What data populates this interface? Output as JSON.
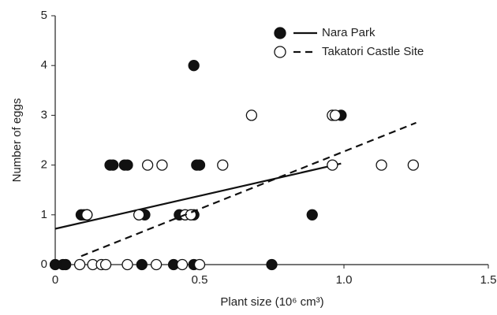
{
  "chart_data": {
    "type": "scatter",
    "x_label": "Plant size (10⁶ cm³)",
    "y_label": "Number of eggs",
    "xlim": [
      0,
      1.5
    ],
    "ylim": [
      0,
      5
    ],
    "xticks": [
      0,
      0.5,
      {
        "value": 1,
        "label": "1.0"
      },
      1.5
    ],
    "yticks": [
      0,
      1,
      2,
      3,
      4,
      5
    ],
    "legend": "top-right",
    "series": [
      {
        "name": "Nara Park",
        "color": "#111111",
        "filled": true,
        "dashed": false,
        "x": [
          0,
          0.027,
          0.036,
          0.3,
          0.41,
          0.48,
          0.75,
          0.09,
          0.1,
          0.31,
          0.43,
          0.48,
          0.89,
          0.19,
          0.2,
          0.24,
          0.25,
          0.49,
          0.5,
          0.99,
          0.48
        ],
        "y": [
          0,
          0,
          0,
          0,
          0,
          0,
          0,
          1,
          1,
          1,
          1,
          1,
          1,
          2,
          2,
          2,
          2,
          2,
          2,
          3,
          4
        ],
        "trend": {
          "x": [
            0,
            0.99
          ],
          "y": [
            0.72,
            2.03
          ]
        }
      },
      {
        "name": "Takatori Castle Site",
        "color": "#111111",
        "filled": false,
        "dashed": true,
        "x": [
          0.085,
          0.13,
          0.16,
          0.175,
          0.25,
          0.35,
          0.44,
          0.5,
          0.11,
          0.11,
          0.29,
          0.45,
          0.47,
          0.32,
          0.37,
          0.58,
          0.96,
          1.13,
          1.24,
          0.68,
          0.96,
          0.97
        ],
        "y": [
          0,
          0,
          0,
          0,
          0,
          0,
          0,
          0,
          1,
          1,
          1,
          1,
          1,
          2,
          2,
          2,
          2,
          2,
          2,
          3,
          3,
          3
        ],
        "trend": {
          "x": [
            0.09,
            1.25
          ],
          "y": [
            0.17,
            2.85
          ]
        }
      }
    ]
  }
}
